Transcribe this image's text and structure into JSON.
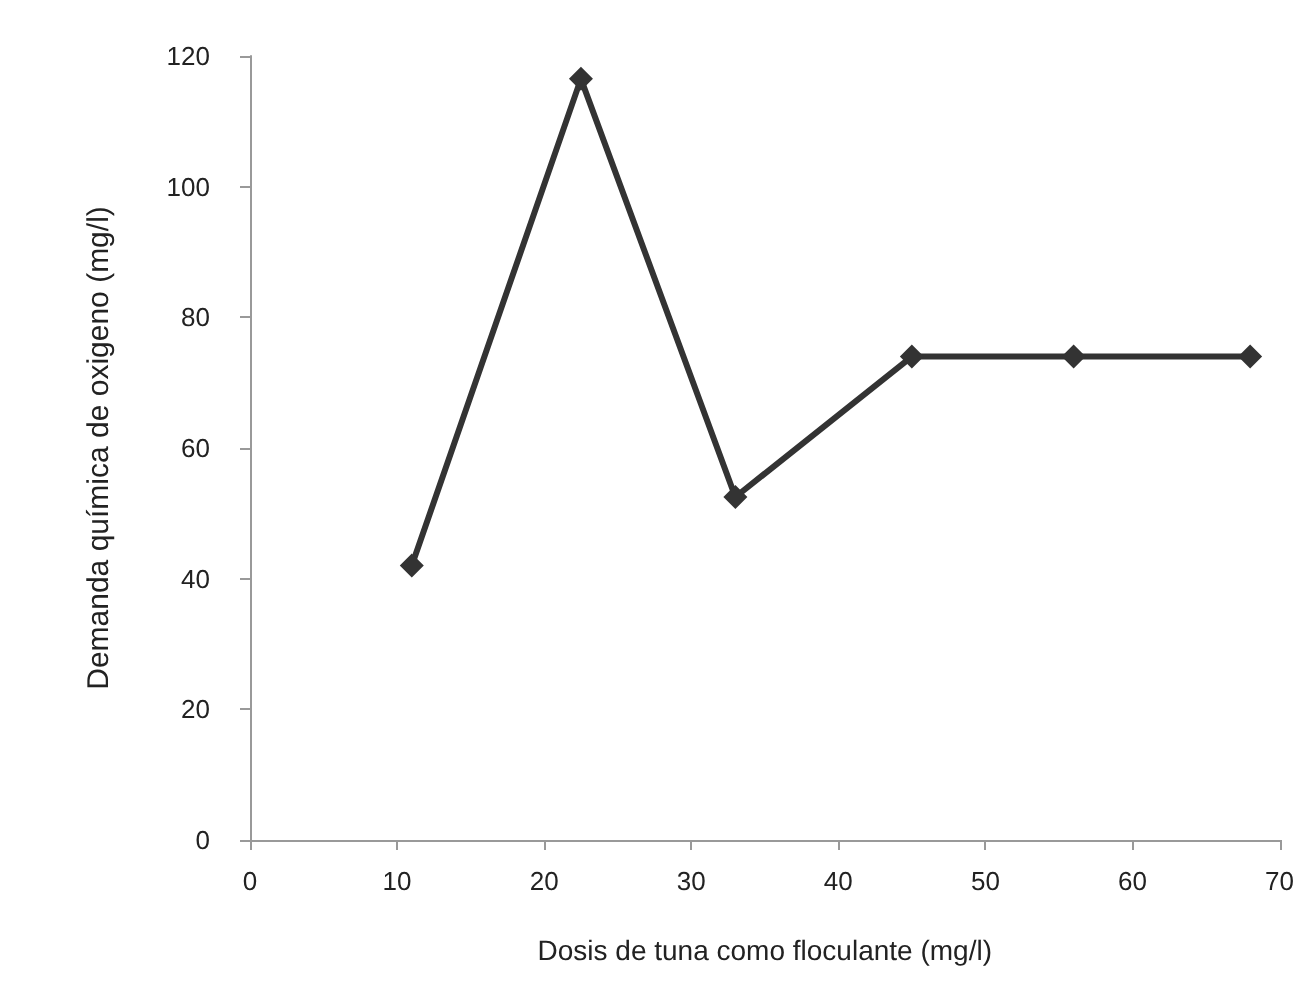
{
  "chart_data": {
    "type": "line",
    "xlabel": "Dosis de tuna como floculante (mg/l)",
    "ylabel": "Demanda química de oxigeno (mg/l)",
    "x": [
      11,
      22.5,
      33,
      45,
      56,
      68
    ],
    "series": [
      {
        "color": "#333333",
        "values": [
          42,
          116.5,
          52.5,
          74,
          74,
          74
        ]
      }
    ],
    "xlim": [
      0,
      70
    ],
    "xticks": [
      0,
      10,
      20,
      30,
      40,
      50,
      60,
      70
    ],
    "ylim": [
      0,
      120
    ],
    "yticks": [
      0,
      20,
      40,
      60,
      80,
      100,
      120
    ],
    "grid": false,
    "marker": "diamond",
    "line_style": "solid"
  }
}
